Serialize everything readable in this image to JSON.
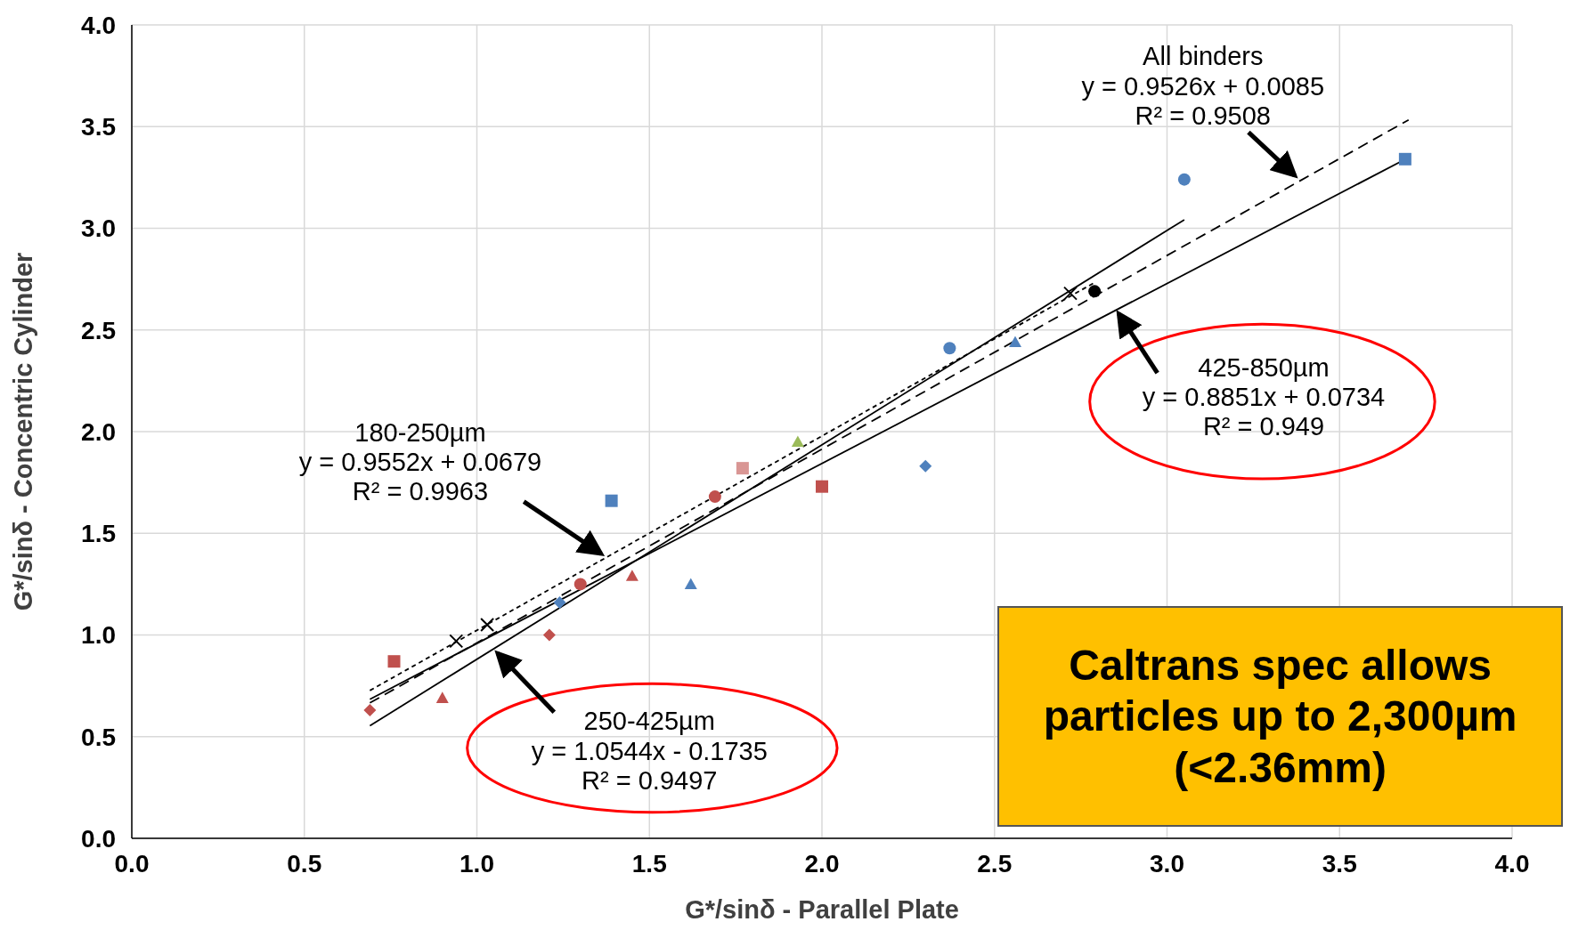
{
  "chart_data": {
    "type": "scatter",
    "xlabel": "G*/sinδ - Parallel Plate",
    "ylabel": "G*/sinδ - Concentric Cylinder",
    "xlim": [
      0,
      4
    ],
    "ylim": [
      0,
      4
    ],
    "xticks": [
      {
        "value": 0,
        "label": "0.0"
      },
      0.5,
      {
        "value": 1,
        "label": "1.0"
      },
      1.5,
      {
        "value": 2,
        "label": "2.0"
      },
      2.5,
      {
        "value": 3,
        "label": "3.0"
      },
      3.5,
      {
        "value": 4,
        "label": "4.0"
      }
    ],
    "yticks": [
      {
        "value": 0,
        "label": "0.0"
      },
      0.5,
      {
        "value": 1,
        "label": "1.0"
      },
      1.5,
      {
        "value": 2,
        "label": "2.0"
      },
      2.5,
      {
        "value": 3,
        "label": "3.0"
      },
      3.5,
      {
        "value": 4,
        "label": "4.0"
      }
    ],
    "grid": true,
    "series": [
      {
        "color": "#c0504d",
        "marker": "diamond",
        "x": [
          0.69,
          1.21
        ],
        "values": [
          0.63,
          1.0
        ]
      },
      {
        "color": "#c0504d",
        "marker": "square",
        "x": [
          0.76,
          2.0
        ],
        "values": [
          0.87,
          1.73
        ]
      },
      {
        "color": "#c0504d",
        "marker": "triangle",
        "x": [
          0.9,
          1.45
        ],
        "values": [
          0.69,
          1.29
        ]
      },
      {
        "color": "#c0504d",
        "marker": "circle",
        "x": [
          1.3,
          1.69
        ],
        "values": [
          1.25,
          1.68
        ]
      },
      {
        "color": "#4f81bd",
        "marker": "diamond",
        "x": [
          1.24,
          2.3
        ],
        "values": [
          1.16,
          1.83
        ]
      },
      {
        "color": "#4f81bd",
        "marker": "square",
        "x": [
          1.39,
          3.69
        ],
        "values": [
          1.66,
          3.34
        ]
      },
      {
        "color": "#4f81bd",
        "marker": "triangle",
        "x": [
          1.62,
          2.56
        ],
        "values": [
          1.25,
          2.44
        ]
      },
      {
        "color": "#4f81bd",
        "marker": "circle",
        "x": [
          2.37,
          3.05
        ],
        "values": [
          2.41,
          3.24
        ]
      },
      {
        "color": "#9bbb59",
        "marker": "triangle",
        "x": [
          1.93
        ],
        "values": [
          1.95
        ]
      },
      {
        "color": "#d99694",
        "marker": "square",
        "x": [
          1.77
        ],
        "values": [
          1.82
        ]
      },
      {
        "color": "#000000",
        "marker": "cross",
        "x": [
          0.94,
          1.03,
          2.72
        ],
        "values": [
          0.97,
          1.05,
          2.68
        ]
      },
      {
        "color": "#000000",
        "marker": "circle",
        "x": [
          2.79
        ],
        "values": [
          2.69
        ]
      },
      {
        "type": "line",
        "color": "#000000",
        "line_style": "dashed",
        "x": [
          0.69,
          3.7
        ],
        "values": [
          0.666,
          3.533
        ]
      },
      {
        "type": "line",
        "color": "#000000",
        "line_style": "dotted",
        "x": [
          0.69,
          2.79
        ],
        "values": [
          0.727,
          2.733
        ]
      },
      {
        "type": "line",
        "color": "#000000",
        "line_style": "solid",
        "x": [
          0.69,
          3.05
        ],
        "values": [
          0.554,
          3.042
        ]
      },
      {
        "type": "line",
        "color": "#000000",
        "line_style": "solid",
        "x": [
          0.69,
          3.7
        ],
        "values": [
          0.684,
          3.348
        ]
      }
    ],
    "annotations": [
      "All binders\ny = 0.9526x + 0.0085\nR² = 0.9508",
      "180-250µm\ny = 0.9552x + 0.0679\nR² = 0.9963",
      "250-425µm\ny = 1.0544x - 0.1735\nR² = 0.9497",
      "425-850µm\ny = 0.8851x + 0.0734\nR² = 0.949",
      "Caltrans spec allows particles up to 2,300µm (<2.36mm)"
    ]
  }
}
